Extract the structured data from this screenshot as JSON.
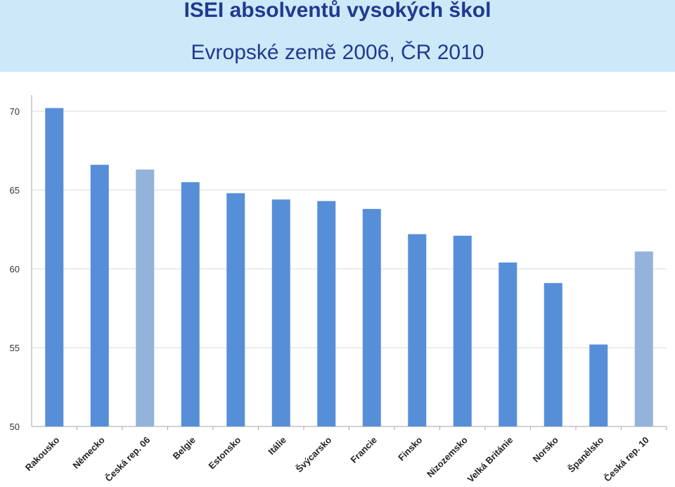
{
  "header": {
    "title": "ISEI absolventů vysokých škol",
    "subtitle": "Evropské země 2006, ČR 2010"
  },
  "chart_data": {
    "type": "bar",
    "categories": [
      "Rakousko",
      "Německo",
      "Česká rep. 06",
      "Belgie",
      "Estonsko",
      "Itálie",
      "Švýcarsko",
      "Francie",
      "Finsko",
      "Nizozemsko",
      "Velká Británie",
      "Norsko",
      "Španělsko",
      "Česká rep. 10"
    ],
    "values": [
      70.2,
      66.6,
      66.3,
      65.5,
      64.8,
      64.4,
      64.3,
      63.8,
      62.2,
      62.1,
      60.4,
      59.1,
      55.2,
      61.1
    ],
    "highlight": [
      "Česká rep. 06",
      "Česká rep. 10"
    ],
    "ylim": [
      50,
      70
    ],
    "yticks": [
      50,
      55,
      60,
      65,
      70
    ],
    "grid": true,
    "colors": {
      "bar": "#568fd8",
      "highlight": "#93b3da",
      "grid": "#d9d9d9",
      "axis": "#a6a6a6"
    }
  }
}
